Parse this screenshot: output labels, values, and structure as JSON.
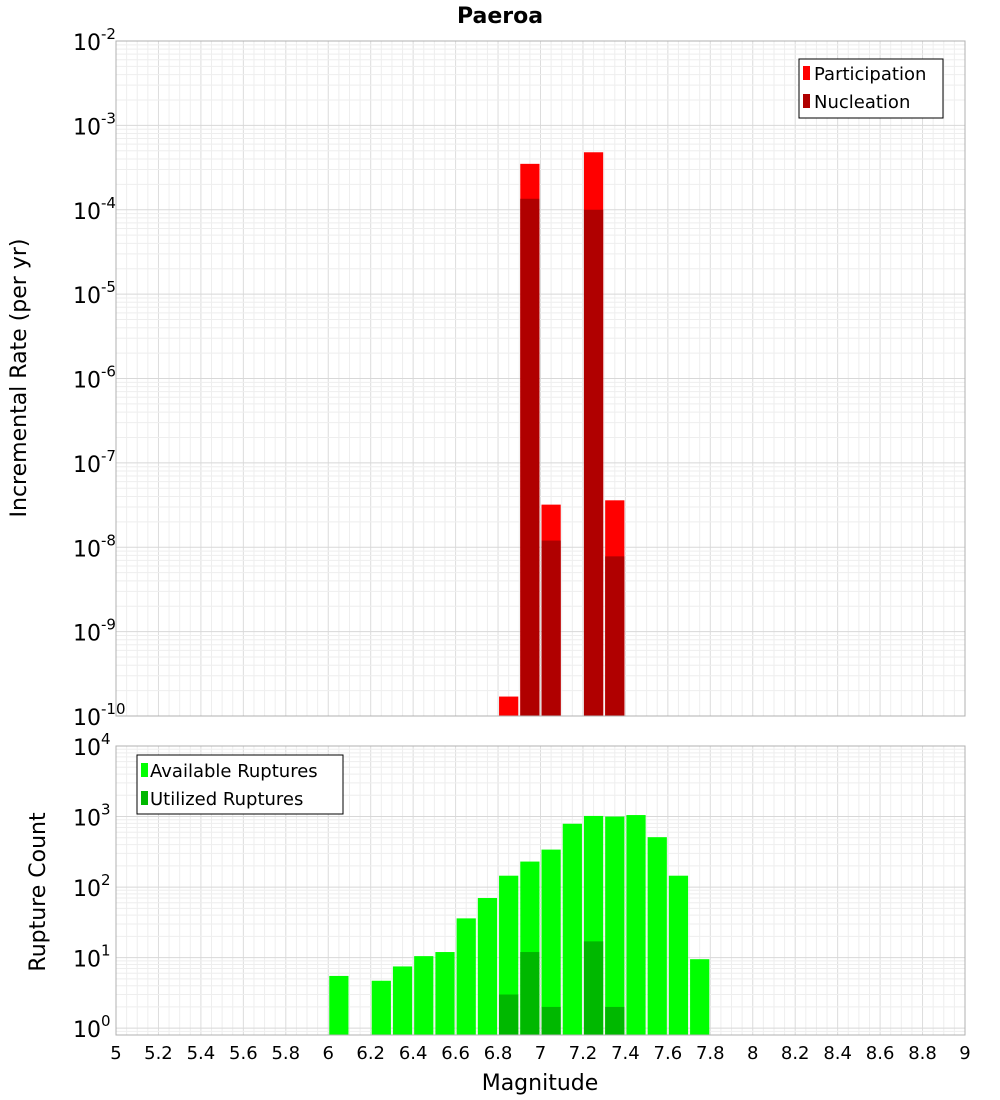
{
  "chart_data": [
    {
      "type": "bar",
      "title": "Paeroa",
      "ylabel": "Incremental Rate (per yr)",
      "yscale": "log",
      "ylim": [
        1e-10,
        0.01
      ],
      "xlim": [
        5,
        9
      ],
      "ytick_exponents": [
        -2,
        -3,
        -4,
        -5,
        -6,
        -7,
        -8,
        -9,
        -10
      ],
      "legend": {
        "placement": "top-right",
        "entries": [
          "Participation",
          "Nucleation"
        ]
      },
      "bin_width": 0.1,
      "series": [
        {
          "name": "Participation",
          "color": "#ff0000",
          "x": [
            6.85,
            6.95,
            7.05,
            7.25,
            7.35
          ],
          "values": [
            1.7e-10,
            0.00035,
            3.2e-08,
            0.00048,
            3.6e-08
          ]
        },
        {
          "name": "Nucleation",
          "color": "#b00000",
          "x": [
            6.95,
            7.05,
            7.25,
            7.35
          ],
          "values": [
            0.000135,
            1.2e-08,
            0.0001,
            7.8e-09
          ]
        }
      ]
    },
    {
      "type": "bar",
      "xlabel": "Magnitude",
      "ylabel": "Rupture Count",
      "yscale": "log",
      "ylim": [
        0.8,
        10000
      ],
      "xlim": [
        5,
        9
      ],
      "ytick_exponents": [
        4,
        3,
        2,
        1,
        0
      ],
      "xticks": [
        "5",
        "5.2",
        "5.4",
        "5.6",
        "5.8",
        "6",
        "6.2",
        "6.4",
        "6.6",
        "6.8",
        "7",
        "7.2",
        "7.4",
        "7.6",
        "7.8",
        "8",
        "8.2",
        "8.4",
        "8.6",
        "8.8",
        "9"
      ],
      "legend": {
        "placement": "top-left",
        "entries": [
          "Available Ruptures",
          "Utilized Ruptures"
        ]
      },
      "bin_width": 0.1,
      "series": [
        {
          "name": "Available Ruptures",
          "color": "#00ff00",
          "x": [
            6.05,
            6.25,
            6.35,
            6.45,
            6.55,
            6.65,
            6.75,
            6.85,
            6.95,
            7.05,
            7.15,
            7.25,
            7.35,
            7.45,
            7.55,
            7.65,
            7.75
          ],
          "values": [
            5.5,
            4.7,
            7.5,
            10.5,
            12,
            36,
            70,
            145,
            230,
            340,
            790,
            1020,
            1000,
            1050,
            510,
            145,
            9.5
          ]
        },
        {
          "name": "Utilized Ruptures",
          "color": "#00b800",
          "x": [
            6.85,
            6.95,
            7.05,
            7.25,
            7.35
          ],
          "values": [
            3,
            12,
            2,
            17,
            2
          ]
        }
      ]
    }
  ]
}
